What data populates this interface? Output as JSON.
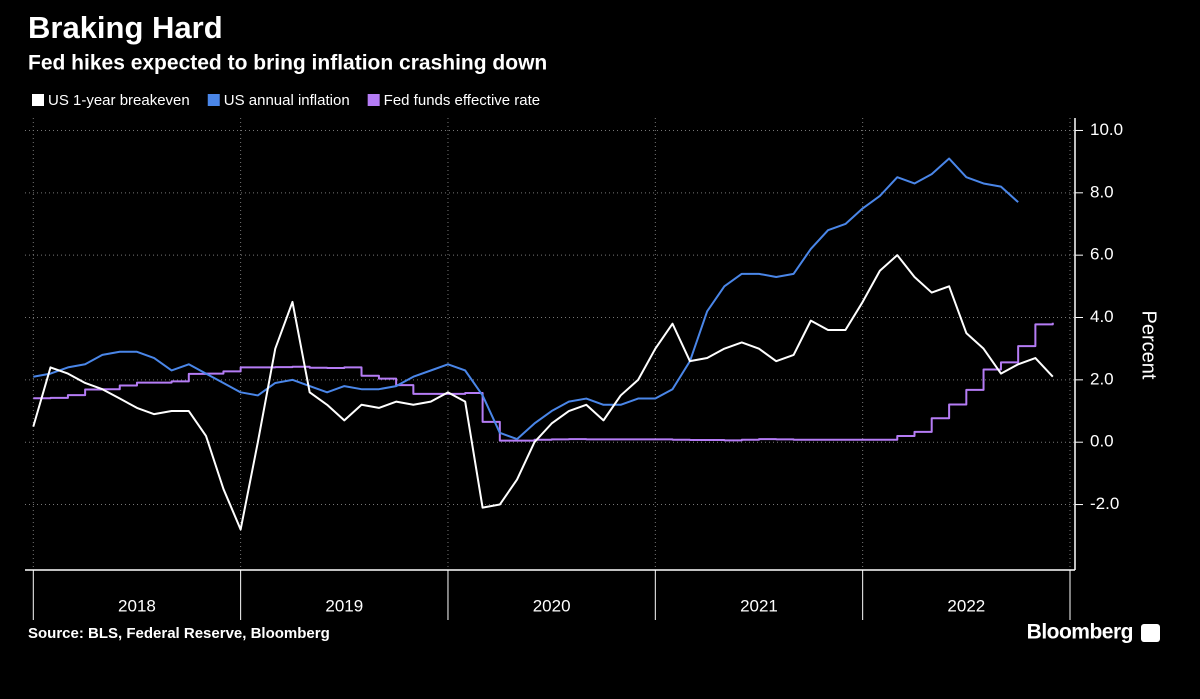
{
  "chart_data": {
    "type": "line",
    "title": "Braking Hard",
    "subtitle": "Fed hikes expected to bring inflation crashing down",
    "y_axis_label": "Percent",
    "source": "Source: BLS, Federal Reserve, Bloomberg",
    "brand": "Bloomberg",
    "x": [
      2018.0,
      2018.083,
      2018.167,
      2018.25,
      2018.333,
      2018.417,
      2018.5,
      2018.583,
      2018.667,
      2018.75,
      2018.833,
      2018.917,
      2019.0,
      2019.083,
      2019.167,
      2019.25,
      2019.333,
      2019.417,
      2019.5,
      2019.583,
      2019.667,
      2019.75,
      2019.833,
      2019.917,
      2020.0,
      2020.083,
      2020.167,
      2020.25,
      2020.333,
      2020.417,
      2020.5,
      2020.583,
      2020.667,
      2020.75,
      2020.833,
      2020.917,
      2021.0,
      2021.083,
      2021.167,
      2021.25,
      2021.333,
      2021.417,
      2021.5,
      2021.583,
      2021.667,
      2021.75,
      2021.833,
      2021.917,
      2022.0,
      2022.083,
      2022.167,
      2022.25,
      2022.333,
      2022.417,
      2022.5,
      2022.583,
      2022.667,
      2022.75,
      2022.833,
      2022.917
    ],
    "series": [
      {
        "name": "US 1-year breakeven",
        "color": "#ffffff",
        "step": false,
        "values": [
          0.5,
          2.4,
          2.2,
          1.9,
          1.7,
          1.4,
          1.1,
          0.9,
          1.0,
          1.0,
          0.2,
          -1.5,
          -2.8,
          0.0,
          3.0,
          4.5,
          1.6,
          1.2,
          0.7,
          1.2,
          1.1,
          1.3,
          1.2,
          1.3,
          1.6,
          1.3,
          -2.1,
          -2.0,
          -1.2,
          0.0,
          0.6,
          1.0,
          1.2,
          0.7,
          1.5,
          2.0,
          3.0,
          3.8,
          2.6,
          2.7,
          3.0,
          3.2,
          3.0,
          2.6,
          2.8,
          3.9,
          3.6,
          3.6,
          4.5,
          5.5,
          6.0,
          5.3,
          4.8,
          5.0,
          3.5,
          3.0,
          2.2,
          2.5,
          2.7,
          2.1
        ]
      },
      {
        "name": "US annual inflation",
        "color": "#4a86e8",
        "step": false,
        "values": [
          2.1,
          2.2,
          2.4,
          2.5,
          2.8,
          2.9,
          2.9,
          2.7,
          2.3,
          2.5,
          2.2,
          1.9,
          1.6,
          1.5,
          1.9,
          2.0,
          1.8,
          1.6,
          1.8,
          1.7,
          1.7,
          1.8,
          2.1,
          2.3,
          2.5,
          2.3,
          1.5,
          0.3,
          0.1,
          0.6,
          1.0,
          1.3,
          1.4,
          1.2,
          1.2,
          1.4,
          1.4,
          1.7,
          2.6,
          4.2,
          5.0,
          5.4,
          5.4,
          5.3,
          5.4,
          6.2,
          6.8,
          7.0,
          7.5,
          7.9,
          8.5,
          8.3,
          8.6,
          9.1,
          8.5,
          8.3,
          8.2,
          7.7,
          null,
          null
        ]
      },
      {
        "name": "Fed funds effective rate",
        "color": "#b57cf5",
        "step": true,
        "values": [
          1.41,
          1.42,
          1.51,
          1.69,
          1.7,
          1.82,
          1.91,
          1.91,
          1.95,
          2.19,
          2.2,
          2.27,
          2.4,
          2.4,
          2.41,
          2.42,
          2.39,
          2.38,
          2.4,
          2.13,
          2.04,
          1.83,
          1.55,
          1.55,
          1.55,
          1.58,
          0.65,
          0.05,
          0.05,
          0.08,
          0.09,
          0.1,
          0.09,
          0.09,
          0.09,
          0.09,
          0.09,
          0.08,
          0.07,
          0.07,
          0.06,
          0.08,
          0.1,
          0.09,
          0.08,
          0.08,
          0.08,
          0.08,
          0.08,
          0.08,
          0.2,
          0.33,
          0.77,
          1.21,
          1.68,
          2.33,
          2.56,
          3.08,
          3.78,
          3.83
        ]
      }
    ],
    "xlim": [
      2017.96,
      2023.0
    ],
    "xgrid": [
      2018,
      2019,
      2020,
      2021,
      2022,
      2023
    ],
    "xticks": [
      {
        "value": 2018.5,
        "label": "2018"
      },
      {
        "value": 2019.5,
        "label": "2019"
      },
      {
        "value": 2020.5,
        "label": "2020"
      },
      {
        "value": 2021.5,
        "label": "2021"
      },
      {
        "value": 2022.5,
        "label": "2022"
      }
    ],
    "ylim": [
      -4.1,
      10.4
    ],
    "yticks": [
      {
        "value": -2,
        "label": "-2.0"
      },
      {
        "value": 0,
        "label": "0.0"
      },
      {
        "value": 2,
        "label": "2.0"
      },
      {
        "value": 4,
        "label": "4.0"
      },
      {
        "value": 6,
        "label": "6.0"
      },
      {
        "value": 8,
        "label": "8.0"
      },
      {
        "value": 10,
        "label": "10.0"
      }
    ],
    "grid": true
  }
}
